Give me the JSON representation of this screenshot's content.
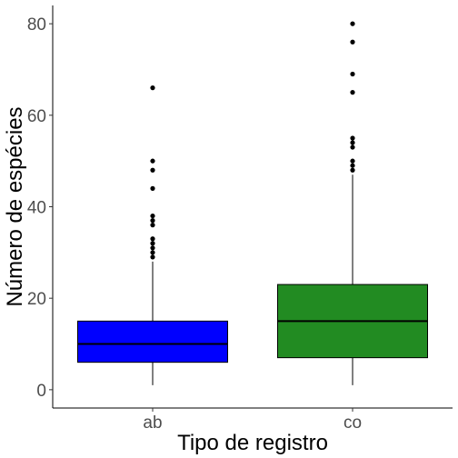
{
  "chart_data": {
    "type": "box",
    "xlabel": "Tipo de registro",
    "ylabel": "Número de espécies",
    "ylim": [
      -4,
      84
    ],
    "yticks": [
      0,
      20,
      40,
      60,
      80
    ],
    "categories": [
      "ab",
      "co"
    ],
    "grid": false,
    "boxes": [
      {
        "category": "ab",
        "color": "#0000ff",
        "whisker_low": 1,
        "q1": 6,
        "median": 10,
        "q3": 15,
        "whisker_high": 28,
        "outliers": [
          29,
          30,
          31,
          32,
          33,
          36,
          37,
          38,
          44,
          48,
          50,
          66
        ]
      },
      {
        "category": "co",
        "color": "#228b22",
        "whisker_low": 1,
        "q1": 7,
        "median": 15,
        "q3": 23,
        "whisker_high": 47,
        "outliers": [
          48,
          49,
          50,
          53,
          54,
          55,
          65,
          69,
          76,
          80
        ]
      }
    ]
  }
}
